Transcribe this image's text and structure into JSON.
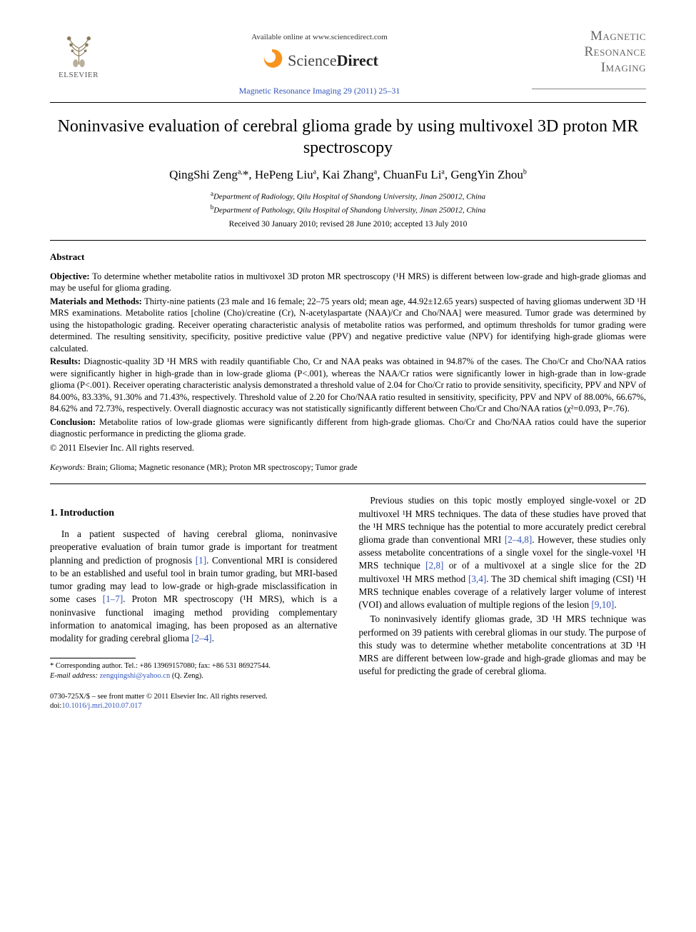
{
  "header": {
    "publisher_name": "ELSEVIER",
    "available_text": "Available online at www.sciencedirect.com",
    "sciencedirect_label_part1": "Science",
    "sciencedirect_label_part2": "Direct",
    "journal_ref": "Magnetic Resonance Imaging 29 (2011) 25–31",
    "journal_title_line1": "Magnetic",
    "journal_title_line2": "Resonance",
    "journal_title_line3": "Imaging"
  },
  "article": {
    "title": "Noninvasive evaluation of cerebral glioma grade by using multivoxel 3D proton MR spectroscopy",
    "authors_html": "QingShi Zeng<sup>a,</sup>*, HePeng Liu<sup>a</sup>, Kai Zhang<sup>a</sup>, ChuanFu Li<sup>a</sup>, GengYin Zhou<sup>b</sup>",
    "affil_a": "Department of Radiology, Qilu Hospital of Shandong University, Jinan 250012, China",
    "affil_b": "Department of Pathology, Qilu Hospital of Shandong University, Jinan 250012, China",
    "dates": "Received 30 January 2010; revised 28 June 2010; accepted 13 July 2010"
  },
  "abstract": {
    "heading": "Abstract",
    "objective": "To determine whether metabolite ratios in multivoxel 3D proton MR spectroscopy (¹H MRS) is different between low-grade and high-grade gliomas and may be useful for glioma grading.",
    "methods": "Thirty-nine patients (23 male and 16 female; 22–75 years old; mean age, 44.92±12.65 years) suspected of having gliomas underwent 3D ¹H MRS examinations. Metabolite ratios [choline (Cho)/creatine (Cr), N-acetylaspartate (NAA)/Cr and Cho/NAA] were measured. Tumor grade was determined by using the histopathologic grading. Receiver operating characteristic analysis of metabolite ratios was performed, and optimum thresholds for tumor grading were determined. The resulting sensitivity, specificity, positive predictive value (PPV) and negative predictive value (NPV) for identifying high-grade gliomas were calculated.",
    "results": "Diagnostic-quality 3D ¹H MRS with readily quantifiable Cho, Cr and NAA peaks was obtained in 94.87% of the cases. The Cho/Cr and Cho/NAA ratios were significantly higher in high-grade than in low-grade glioma (P<.001), whereas the NAA/Cr ratios were significantly lower in high-grade than in low-grade glioma (P<.001). Receiver operating characteristic analysis demonstrated a threshold value of 2.04 for Cho/Cr ratio to provide sensitivity, specificity, PPV and NPV of 84.00%, 83.33%, 91.30% and 71.43%, respectively. Threshold value of 2.20 for Cho/NAA ratio resulted in sensitivity, specificity, PPV and NPV of 88.00%, 66.67%, 84.62% and 72.73%, respectively. Overall diagnostic accuracy was not statistically significantly different between Cho/Cr and Cho/NAA ratios (χ²=0.093, P=.76).",
    "conclusion": "Metabolite ratios of low-grade gliomas were significantly different from high-grade gliomas. Cho/Cr and Cho/NAA ratios could have the superior diagnostic performance in predicting the glioma grade.",
    "copyright": "© 2011 Elsevier Inc. All rights reserved."
  },
  "keywords": {
    "label": "Keywords:",
    "value": "Brain; Glioma; Magnetic resonance (MR); Proton MR spectroscopy; Tumor grade"
  },
  "intro": {
    "heading": "1. Introduction",
    "p1_pre": "In a patient suspected of having cerebral glioma, noninvasive preoperative evaluation of brain tumor grade is important for treatment planning and prediction of prognosis ",
    "p1_ref1": "[1]",
    "p1_mid": ". Conventional MRI is considered to be an established and useful tool in brain tumor grading, but MRI-based tumor grading may lead to low-grade or high-grade misclassification in some cases ",
    "p1_ref2": "[1–7]",
    "p1_post": ". Proton MR spectroscopy (¹H MRS), which is a noninvasive functional imaging method providing complementary information to anatomical imaging, has been proposed as an alternative modality for grading cerebral glioma ",
    "p1_ref3": "[2–4]",
    "p1_end": ".",
    "p2_pre": "Previous studies on this topic mostly employed single-voxel or 2D multivoxel ¹H MRS techniques. The data of these studies have proved that the ¹H MRS technique has the potential to more accurately predict cerebral glioma grade than conventional MRI ",
    "p2_ref1": "[2–4,8]",
    "p2_mid1": ". However, these studies only assess metabolite concentrations of a single voxel for the single-voxel ¹H MRS technique ",
    "p2_ref2": "[2,8]",
    "p2_mid2": " or of a multivoxel at a single slice for the 2D multivoxel ¹H MRS method ",
    "p2_ref3": "[3,4]",
    "p2_mid3": ". The 3D chemical shift imaging (CSI) ¹H MRS technique enables coverage of a relatively larger volume of interest (VOI) and allows evaluation of multiple regions of the lesion ",
    "p2_ref4": "[9,10]",
    "p2_end": ".",
    "p3": "To noninvasively identify gliomas grade, 3D ¹H MRS technique was performed on 39 patients with cerebral gliomas in our study. The purpose of this study was to determine whether metabolite concentrations at 3D ¹H MRS are different between low-grade and high-grade gliomas and may be useful for predicting the grade of cerebral glioma."
  },
  "footnote": {
    "corr": "* Corresponding author. Tel.: +86 13969157080; fax: +86 531 86927544.",
    "email_label": "E-mail address:",
    "email": "zengqingshi@yahoo.cn",
    "email_who": "(Q. Zeng)."
  },
  "footer": {
    "line1": "0730-725X/$ – see front matter © 2011 Elsevier Inc. All rights reserved.",
    "doi_label": "doi:",
    "doi": "10.1016/j.mri.2010.07.017"
  },
  "colors": {
    "link": "#3355bb",
    "text": "#000000",
    "muted": "#666666",
    "logo_orange": "#f7941e"
  }
}
